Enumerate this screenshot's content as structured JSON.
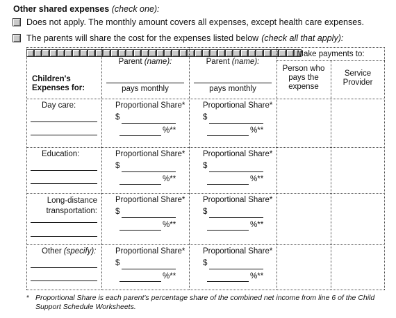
{
  "section": {
    "title": "Other shared expenses",
    "title_note": "(check one):",
    "option_1": "Does not apply. The monthly amount covers all expenses, except health care expenses.",
    "option_2": "The parents will share the cost for the expenses listed below",
    "option_2_note": "(check all that apply):"
  },
  "table": {
    "col_children": "Children's\nExpenses for:",
    "parent_label": "Parent",
    "parent_name_note": "(name):",
    "pays_monthly": "pays monthly",
    "make_payments": "Make payments to:",
    "person_pays": "Person who\npays the\nexpense",
    "service_provider": "Service\nProvider",
    "proportional_share": "Proportional Share*",
    "dollar": "$",
    "percent": "%**",
    "rows": [
      {
        "label": "Day care:",
        "note": ""
      },
      {
        "label": "Education:",
        "note": ""
      },
      {
        "label": "Long-distance\ntransportation:",
        "note": ""
      },
      {
        "label": "Other",
        "note": "(specify):"
      }
    ]
  },
  "footnote": {
    "marker": "*",
    "text": "Proportional Share is each parent's percentage share of the combined net income from line 6 of the Child Support Schedule Worksheets."
  }
}
